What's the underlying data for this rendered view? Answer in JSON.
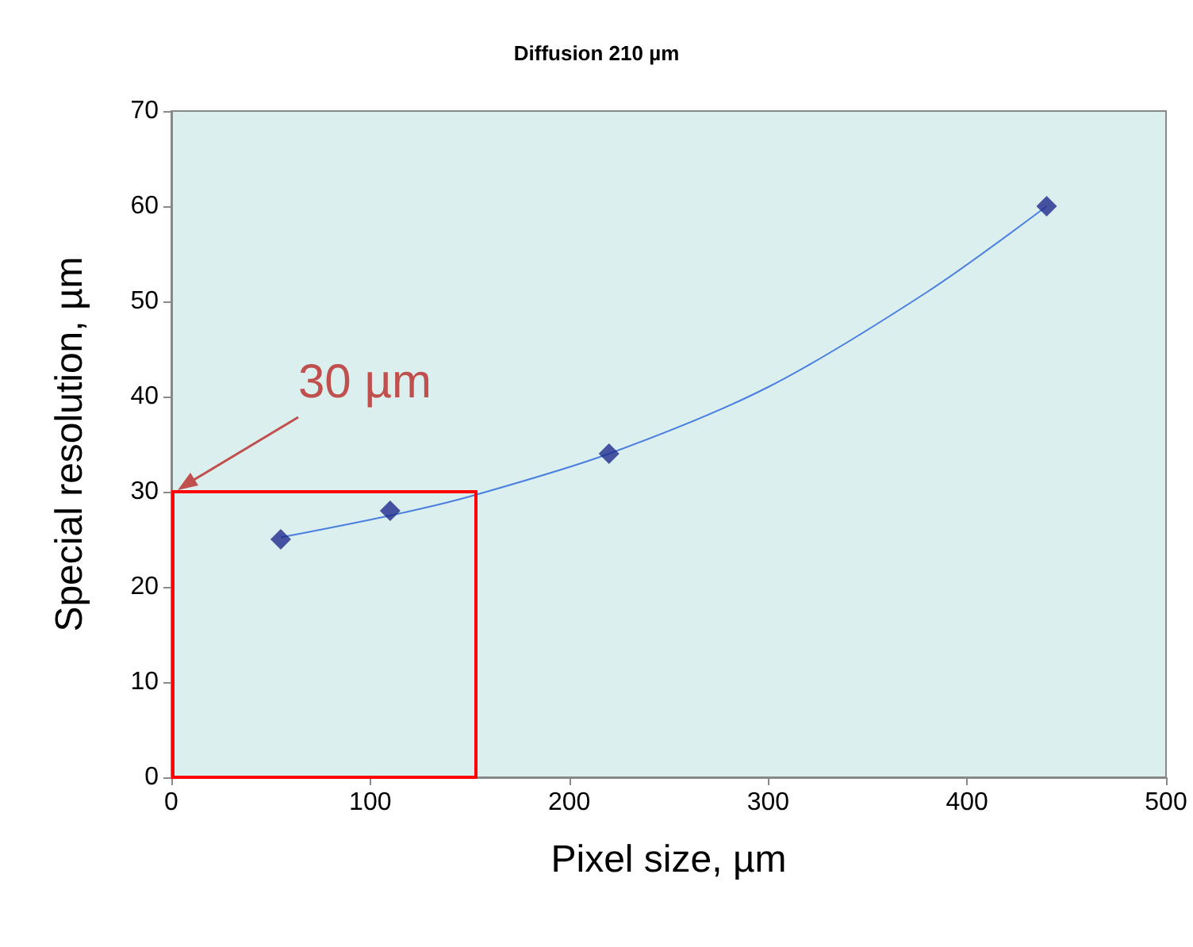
{
  "chart_data": {
    "type": "scatter",
    "title": "Diffusion 210 µm",
    "xlabel": "Pixel size, µm",
    "ylabel": "Special resolution, µm",
    "xlim": [
      0,
      500
    ],
    "xticks": [
      0,
      100,
      200,
      300,
      400,
      500
    ],
    "ylim": [
      0,
      70
    ],
    "yticks": [
      0,
      10,
      20,
      30,
      40,
      50,
      60,
      70
    ],
    "grid": false,
    "marker": "diamond",
    "series": [
      {
        "color": "#1f2a8c",
        "x": [
          55,
          110,
          220,
          440
        ],
        "values": [
          25,
          28,
          34,
          60
        ]
      },
      {
        "type": "line",
        "color": "#4a7fe0",
        "marker": "none",
        "line_style": "solid",
        "x": [
          55,
          110,
          150,
          220,
          300,
          380,
          440
        ],
        "values": [
          25.2,
          27.5,
          29.5,
          34,
          41,
          51,
          60
        ]
      }
    ],
    "annotations": [
      "30 µm"
    ]
  }
}
